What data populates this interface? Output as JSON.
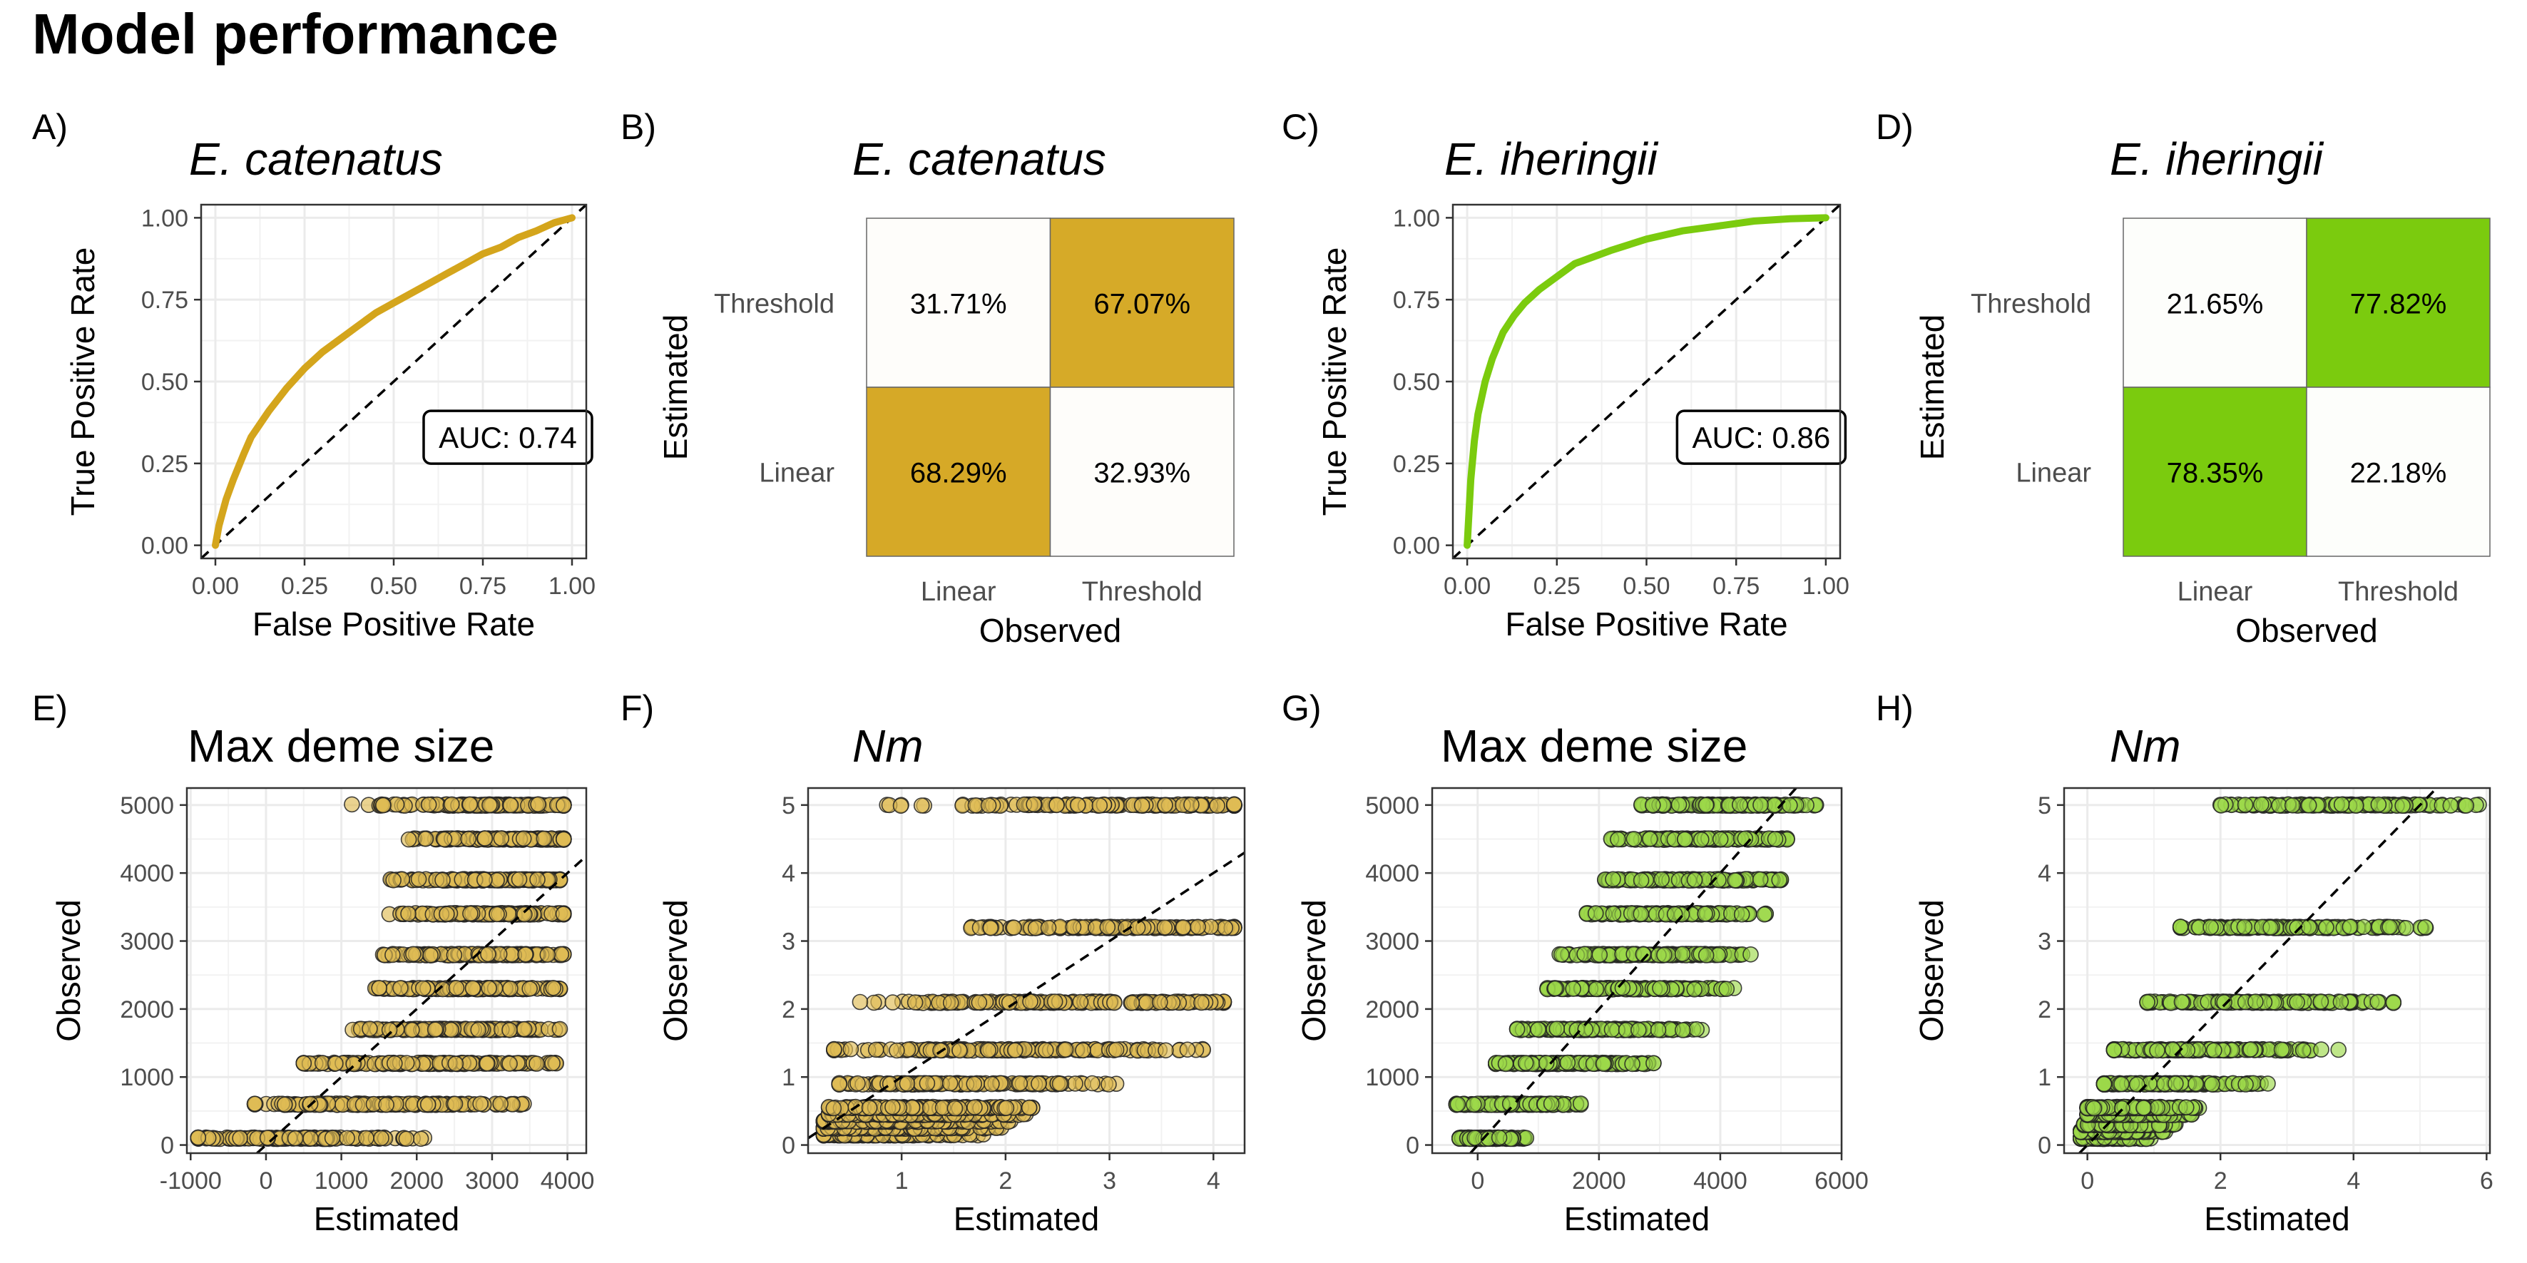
{
  "figure": {
    "title": "Model performance",
    "colors": {
      "catenatus": "#D4A51C",
      "iheringii": "#7BCB0E",
      "grid": "#EBEBEB",
      "frame": "#333333",
      "tick_text": "#4D4D4D",
      "text": "#000000"
    }
  },
  "chart_data": [
    {
      "panel": "A)",
      "type": "line",
      "subtype": "roc",
      "title": "E. catenatus",
      "title_italic": true,
      "species": "catenatus",
      "xlabel": "False Positive Rate",
      "ylabel": "True Positive Rate",
      "xlim": [
        -0.04,
        1.04
      ],
      "ylim": [
        -0.04,
        1.04
      ],
      "xticks": [
        0,
        0.25,
        0.5,
        0.75,
        1
      ],
      "xtick_labels": [
        "0.00",
        "0.25",
        "0.50",
        "0.75",
        "1.00"
      ],
      "yticks": [
        0,
        0.25,
        0.5,
        0.75,
        1
      ],
      "ytick_labels": [
        "0.00",
        "0.25",
        "0.50",
        "0.75",
        "1.00"
      ],
      "x": [
        0,
        0.01,
        0.03,
        0.05,
        0.08,
        0.1,
        0.15,
        0.2,
        0.25,
        0.3,
        0.35,
        0.4,
        0.45,
        0.5,
        0.55,
        0.6,
        0.65,
        0.7,
        0.75,
        0.8,
        0.85,
        0.9,
        0.95,
        1.0
      ],
      "y": [
        0,
        0.06,
        0.14,
        0.2,
        0.28,
        0.33,
        0.41,
        0.48,
        0.54,
        0.59,
        0.63,
        0.67,
        0.71,
        0.74,
        0.77,
        0.8,
        0.83,
        0.86,
        0.89,
        0.91,
        0.94,
        0.96,
        0.985,
        1.0
      ],
      "diagonal": true,
      "annotation": {
        "text": "AUC: 0.74",
        "x": 0.82,
        "y": 0.33
      },
      "grid": true
    },
    {
      "panel": "B)",
      "type": "heatmap",
      "subtype": "confusion-matrix",
      "title": "E. catenatus",
      "title_italic": true,
      "species": "catenatus",
      "xlabel": "Observed",
      "ylabel": "Estimated",
      "x_categories": [
        "Linear",
        "Threshold"
      ],
      "y_categories": [
        "Threshold",
        "Linear"
      ],
      "cells": [
        {
          "x": "Linear",
          "y": "Threshold",
          "value": 31.71,
          "label": "31.71%"
        },
        {
          "x": "Threshold",
          "y": "Threshold",
          "value": 67.07,
          "label": "67.07%"
        },
        {
          "x": "Linear",
          "y": "Linear",
          "value": 68.29,
          "label": "68.29%"
        },
        {
          "x": "Threshold",
          "y": "Linear",
          "value": 32.93,
          "label": "32.93%"
        }
      ]
    },
    {
      "panel": "C)",
      "type": "line",
      "subtype": "roc",
      "title": "E. iheringii",
      "title_italic": true,
      "species": "iheringii",
      "xlabel": "False Positive Rate",
      "ylabel": "True Positive Rate",
      "xlim": [
        -0.04,
        1.04
      ],
      "ylim": [
        -0.04,
        1.04
      ],
      "xticks": [
        0,
        0.25,
        0.5,
        0.75,
        1
      ],
      "xtick_labels": [
        "0.00",
        "0.25",
        "0.50",
        "0.75",
        "1.00"
      ],
      "yticks": [
        0,
        0.25,
        0.5,
        0.75,
        1
      ],
      "ytick_labels": [
        "0.00",
        "0.25",
        "0.50",
        "0.75",
        "1.00"
      ],
      "x": [
        0,
        0.005,
        0.01,
        0.02,
        0.03,
        0.05,
        0.07,
        0.1,
        0.13,
        0.16,
        0.2,
        0.25,
        0.3,
        0.35,
        0.4,
        0.5,
        0.6,
        0.7,
        0.8,
        0.9,
        1.0
      ],
      "y": [
        0,
        0.1,
        0.2,
        0.32,
        0.4,
        0.5,
        0.57,
        0.65,
        0.7,
        0.74,
        0.78,
        0.82,
        0.86,
        0.88,
        0.9,
        0.935,
        0.96,
        0.975,
        0.99,
        0.997,
        1.0
      ],
      "diagonal": true,
      "annotation": {
        "text": "AUC: 0.86",
        "x": 0.82,
        "y": 0.33
      },
      "grid": true
    },
    {
      "panel": "D)",
      "type": "heatmap",
      "subtype": "confusion-matrix",
      "title": "E. iheringii",
      "title_italic": true,
      "species": "iheringii",
      "xlabel": "Observed",
      "ylabel": "Estimated",
      "x_categories": [
        "Linear",
        "Threshold"
      ],
      "y_categories": [
        "Threshold",
        "Linear"
      ],
      "cells": [
        {
          "x": "Linear",
          "y": "Threshold",
          "value": 21.65,
          "label": "21.65%"
        },
        {
          "x": "Threshold",
          "y": "Threshold",
          "value": 77.82,
          "label": "77.82%"
        },
        {
          "x": "Linear",
          "y": "Linear",
          "value": 78.35,
          "label": "78.35%"
        },
        {
          "x": "Threshold",
          "y": "Linear",
          "value": 22.18,
          "label": "22.18%"
        }
      ]
    },
    {
      "panel": "E)",
      "type": "scatter",
      "title": "Max deme size",
      "title_italic": false,
      "species": "catenatus",
      "xlabel": "Estimated",
      "ylabel": "Observed",
      "xlim": [
        -1050,
        4250
      ],
      "ylim": [
        -120,
        5250
      ],
      "xticks": [
        -1000,
        0,
        1000,
        2000,
        3000,
        4000
      ],
      "xtick_labels": [
        "-1000",
        "0",
        "1000",
        "2000",
        "3000",
        "4000"
      ],
      "yticks": [
        0,
        1000,
        2000,
        3000,
        4000,
        5000
      ],
      "ytick_labels": [
        "0",
        "1000",
        "2000",
        "3000",
        "4000",
        "5000"
      ],
      "diagonal": true,
      "grid": true,
      "levels": [
        {
          "y": 100,
          "x_min": -900,
          "x_max": 2100,
          "x_center": 400
        },
        {
          "y": 600,
          "x_min": -150,
          "x_max": 3450,
          "x_center": 1500
        },
        {
          "y": 1200,
          "x_min": 500,
          "x_max": 3850,
          "x_center": 2200
        },
        {
          "y": 1700,
          "x_min": 1150,
          "x_max": 3900,
          "x_center": 2500
        },
        {
          "y": 2300,
          "x_min": 1450,
          "x_max": 3900,
          "x_center": 2800
        },
        {
          "y": 2800,
          "x_min": 1550,
          "x_max": 3950,
          "x_center": 2900
        },
        {
          "y": 3400,
          "x_min": 1600,
          "x_max": 3950,
          "x_center": 3000
        },
        {
          "y": 3900,
          "x_min": 1650,
          "x_max": 3900,
          "x_center": 3100
        },
        {
          "y": 4500,
          "x_min": 1800,
          "x_max": 3950,
          "x_center": 3200
        },
        {
          "y": 5000,
          "x_min": 1050,
          "x_max": 3950,
          "x_center": 3000
        }
      ]
    },
    {
      "panel": "F)",
      "type": "scatter",
      "title": "Nm",
      "title_italic": true,
      "species": "catenatus",
      "xlabel": "Estimated",
      "ylabel": "Observed",
      "xlim": [
        0.1,
        4.3
      ],
      "ylim": [
        -0.12,
        5.25
      ],
      "xticks": [
        1,
        2,
        3,
        4
      ],
      "xtick_labels": [
        "1",
        "2",
        "3",
        "4"
      ],
      "yticks": [
        0,
        1,
        2,
        3,
        4,
        5
      ],
      "ytick_labels": [
        "0",
        "1",
        "2",
        "3",
        "4",
        "5"
      ],
      "diagonal": true,
      "grid": true,
      "levels": [
        {
          "y": 0.15,
          "x_min": 0.25,
          "x_max": 1.8,
          "x_center": 0.7
        },
        {
          "y": 0.25,
          "x_min": 0.25,
          "x_max": 2.0,
          "x_center": 0.8
        },
        {
          "y": 0.35,
          "x_min": 0.25,
          "x_max": 2.1,
          "x_center": 0.9
        },
        {
          "y": 0.45,
          "x_min": 0.3,
          "x_max": 2.2,
          "x_center": 1.0
        },
        {
          "y": 0.55,
          "x_min": 0.3,
          "x_max": 2.3,
          "x_center": 1.1
        },
        {
          "y": 0.9,
          "x_min": 0.4,
          "x_max": 3.1,
          "x_center": 1.4
        },
        {
          "y": 1.4,
          "x_min": 0.35,
          "x_max": 3.9,
          "x_center": 2.0
        },
        {
          "y": 2.1,
          "x_min": 0.6,
          "x_max": 4.1,
          "x_center": 2.6
        },
        {
          "y": 3.2,
          "x_min": 1.6,
          "x_max": 4.2,
          "x_center": 3.2
        },
        {
          "y": 5.0,
          "x_min": 0.85,
          "x_max": 4.2,
          "x_center": 3.4
        }
      ]
    },
    {
      "panel": "G)",
      "type": "scatter",
      "title": "Max deme size",
      "title_italic": false,
      "species": "iheringii",
      "xlabel": "Estimated",
      "ylabel": "Observed",
      "xlim": [
        -750,
        6000
      ],
      "ylim": [
        -120,
        5250
      ],
      "xticks": [
        0,
        2000,
        4000,
        6000
      ],
      "xtick_labels": [
        "0",
        "2000",
        "4000",
        "6000"
      ],
      "yticks": [
        0,
        1000,
        2000,
        3000,
        4000,
        5000
      ],
      "ytick_labels": [
        "0",
        "1000",
        "2000",
        "3000",
        "4000",
        "5000"
      ],
      "diagonal": true,
      "grid": true,
      "levels": [
        {
          "y": 100,
          "x_min": -300,
          "x_max": 800,
          "x_center": 150
        },
        {
          "y": 600,
          "x_min": -350,
          "x_max": 1700,
          "x_center": 500
        },
        {
          "y": 1200,
          "x_min": 300,
          "x_max": 2900,
          "x_center": 1400
        },
        {
          "y": 1700,
          "x_min": 650,
          "x_max": 3700,
          "x_center": 2000
        },
        {
          "y": 2300,
          "x_min": 1150,
          "x_max": 4250,
          "x_center": 2500
        },
        {
          "y": 2800,
          "x_min": 1350,
          "x_max": 4600,
          "x_center": 2900
        },
        {
          "y": 3400,
          "x_min": 1800,
          "x_max": 4750,
          "x_center": 3200
        },
        {
          "y": 3900,
          "x_min": 2100,
          "x_max": 5000,
          "x_center": 3500
        },
        {
          "y": 4500,
          "x_min": 2200,
          "x_max": 5100,
          "x_center": 3700
        },
        {
          "y": 5000,
          "x_min": 2700,
          "x_max": 5650,
          "x_center": 4000
        }
      ]
    },
    {
      "panel": "H)",
      "type": "scatter",
      "title": "Nm",
      "title_italic": true,
      "species": "iheringii",
      "xlabel": "Estimated",
      "ylabel": "Observed",
      "xlim": [
        -0.35,
        6.05
      ],
      "ylim": [
        -0.12,
        5.25
      ],
      "xticks": [
        0,
        2,
        4,
        6
      ],
      "xtick_labels": [
        "0",
        "2",
        "4",
        "6"
      ],
      "yticks": [
        0,
        1,
        2,
        3,
        4,
        5
      ],
      "ytick_labels": [
        "0",
        "1",
        "2",
        "3",
        "4",
        "5"
      ],
      "diagonal": true,
      "grid": true,
      "levels": [
        {
          "y": 0.1,
          "x_min": -0.1,
          "x_max": 1.0,
          "x_center": 0.2
        },
        {
          "y": 0.2,
          "x_min": -0.1,
          "x_max": 1.2,
          "x_center": 0.3
        },
        {
          "y": 0.3,
          "x_min": -0.05,
          "x_max": 1.4,
          "x_center": 0.4
        },
        {
          "y": 0.45,
          "x_min": 0.0,
          "x_max": 1.6,
          "x_center": 0.5
        },
        {
          "y": 0.55,
          "x_min": 0.0,
          "x_max": 1.7,
          "x_center": 0.6
        },
        {
          "y": 0.9,
          "x_min": 0.25,
          "x_max": 2.9,
          "x_center": 1.0
        },
        {
          "y": 1.4,
          "x_min": 0.4,
          "x_max": 3.8,
          "x_center": 1.6
        },
        {
          "y": 2.1,
          "x_min": 0.9,
          "x_max": 4.6,
          "x_center": 2.5
        },
        {
          "y": 3.2,
          "x_min": 1.4,
          "x_max": 5.1,
          "x_center": 3.0
        },
        {
          "y": 5.0,
          "x_min": 2.0,
          "x_max": 5.9,
          "x_center": 4.0
        }
      ]
    }
  ]
}
